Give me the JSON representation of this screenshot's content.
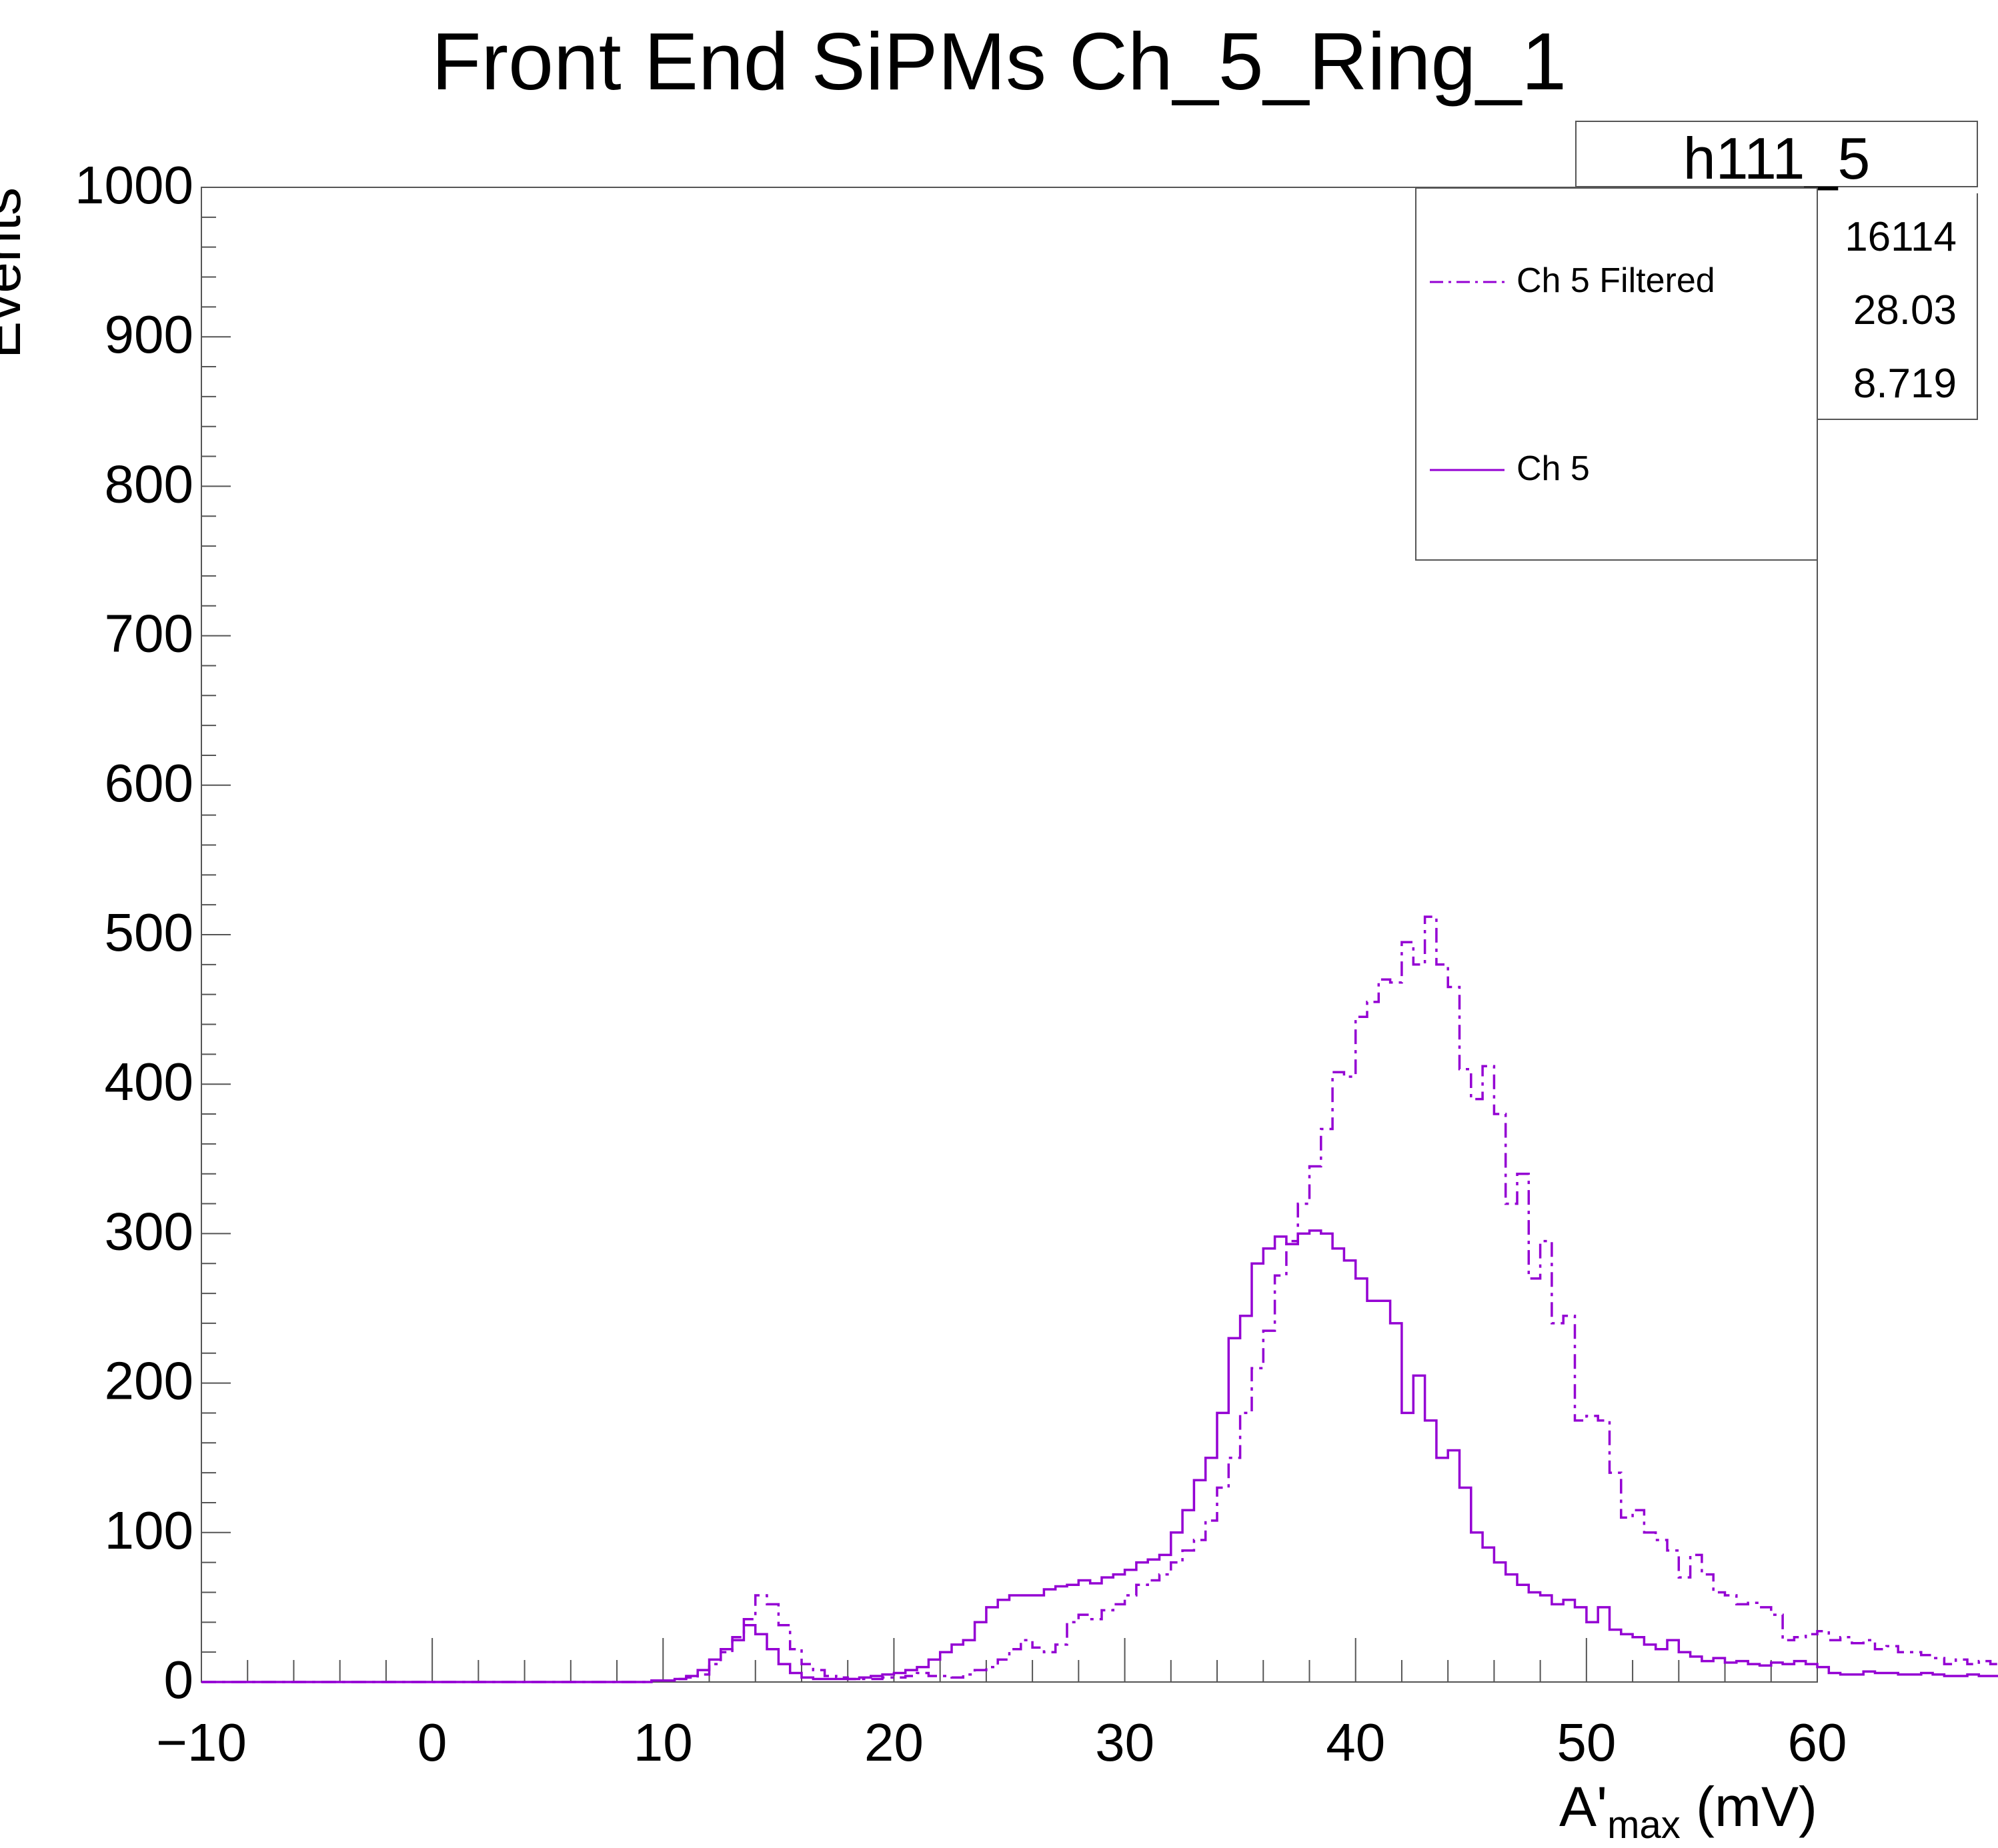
{
  "chart_data": {
    "type": "line",
    "title": "Front End SiPMs Ch_5_Ring_1",
    "xlabel": "A'max (mV)",
    "xlabel_main": "A'",
    "xlabel_sub": "max",
    "xlabel_unit": " (mV)",
    "ylabel": "Events",
    "xlim": [
      -10,
      60
    ],
    "ylim": [
      0,
      1000
    ],
    "x_ticks": [
      -10,
      0,
      10,
      20,
      30,
      40,
      50,
      60
    ],
    "x_tick_labels": [
      "−10",
      "0",
      "10",
      "20",
      "30",
      "40",
      "50",
      "60"
    ],
    "y_ticks": [
      0,
      100,
      200,
      300,
      400,
      500,
      600,
      700,
      800,
      900,
      1000
    ],
    "y_tick_labels": [
      "0",
      "100",
      "200",
      "300",
      "400",
      "500",
      "600",
      "700",
      "800",
      "900",
      "1000"
    ],
    "bin_edges_start": -10,
    "bin_width": 0.5,
    "grid": false,
    "legend_position": "top-right",
    "series": [
      {
        "name": "Ch 5 Filtered",
        "style": "dash-dot",
        "color": "#9400D3",
        "values": [
          0,
          0,
          0,
          0,
          0,
          0,
          0,
          0,
          0,
          0,
          0,
          0,
          0,
          0,
          0,
          0,
          0,
          0,
          0,
          0,
          0,
          0,
          0,
          0,
          0,
          0,
          0,
          0,
          0,
          0,
          0,
          0,
          0,
          0,
          0,
          0,
          0,
          0,
          0,
          1,
          1,
          2,
          3,
          5,
          12,
          20,
          30,
          42,
          58,
          52,
          38,
          22,
          12,
          8,
          4,
          3,
          2,
          2,
          2,
          3,
          3,
          4,
          6,
          4,
          4,
          3,
          5,
          8,
          10,
          15,
          22,
          28,
          23,
          20,
          25,
          40,
          45,
          42,
          48,
          52,
          58,
          65,
          68,
          72,
          80,
          88,
          95,
          108,
          130,
          150,
          180,
          210,
          235,
          272,
          295,
          320,
          345,
          370,
          408,
          405,
          445,
          455,
          470,
          468,
          495,
          480,
          512,
          480,
          465,
          410,
          390,
          412,
          380,
          320,
          340,
          270,
          295,
          240,
          245,
          175,
          178,
          175,
          140,
          110,
          115,
          100,
          95,
          88,
          70,
          85,
          72,
          60,
          58,
          52,
          53,
          50,
          45,
          28,
          30,
          32,
          34,
          28,
          30,
          26,
          28,
          22,
          24,
          20,
          20,
          18,
          16,
          12,
          15,
          12,
          14,
          12,
          10,
          8,
          10,
          8,
          6
        ]
      },
      {
        "name": "Ch 5",
        "style": "solid",
        "color": "#9400D3",
        "values": [
          0,
          0,
          0,
          0,
          0,
          0,
          0,
          0,
          0,
          0,
          0,
          0,
          0,
          0,
          0,
          0,
          0,
          0,
          0,
          0,
          0,
          0,
          0,
          0,
          0,
          0,
          0,
          0,
          0,
          0,
          0,
          0,
          0,
          0,
          0,
          0,
          0,
          0,
          0,
          1,
          1,
          2,
          4,
          8,
          15,
          22,
          28,
          38,
          32,
          22,
          12,
          6,
          3,
          2,
          2,
          2,
          2,
          3,
          4,
          5,
          6,
          8,
          10,
          15,
          20,
          25,
          28,
          40,
          50,
          55,
          58,
          58,
          58,
          62,
          64,
          65,
          68,
          66,
          70,
          72,
          75,
          80,
          82,
          85,
          100,
          115,
          135,
          150,
          180,
          230,
          245,
          280,
          290,
          298,
          293,
          300,
          302,
          300,
          290,
          282,
          270,
          255,
          255,
          240,
          180,
          205,
          175,
          150,
          155,
          130,
          100,
          90,
          80,
          72,
          65,
          60,
          58,
          52,
          55,
          50,
          40,
          50,
          35,
          32,
          30,
          25,
          22,
          28,
          20,
          17,
          14,
          16,
          13,
          14,
          12,
          11,
          13,
          12,
          14,
          12,
          10,
          6,
          5,
          5,
          7,
          6,
          6,
          5,
          5,
          6,
          5,
          4,
          4,
          5,
          4,
          4,
          3,
          3,
          3,
          2,
          2
        ]
      }
    ]
  },
  "stats": {
    "name": "h111_5",
    "entries": "16114",
    "mean": "28.03",
    "std_dev": "8.719"
  },
  "legend": {
    "entries": [
      {
        "label": "Ch 5 Filtered",
        "style": "dash-dot"
      },
      {
        "label": "Ch 5",
        "style": "solid"
      }
    ]
  }
}
